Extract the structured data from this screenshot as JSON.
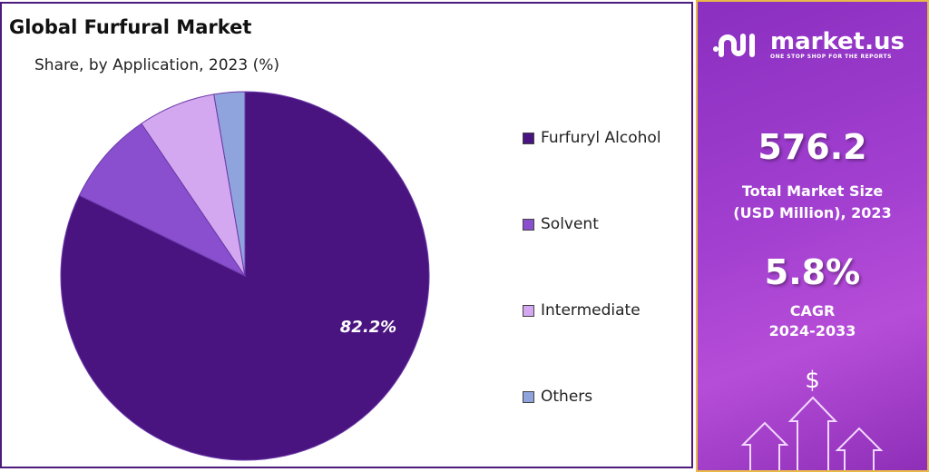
{
  "chart_data": {
    "type": "pie",
    "title": "Global Furfural Market",
    "subtitle": "Share, by Application, 2023 (%)",
    "categories": [
      "Furfuryl Alcohol",
      "Solvent",
      "Intermediate",
      "Others"
    ],
    "values": [
      82.2,
      8.3,
      6.8,
      2.7
    ],
    "colors": [
      "#4a1480",
      "#8a4fcf",
      "#d4a8f0",
      "#8fa3dc"
    ],
    "data_labels": [
      "82.2%"
    ],
    "legend_position": "right"
  },
  "panel": {
    "brand": "market.us",
    "tagline": "ONE STOP SHOP FOR THE REPORTS",
    "market_size": "576.2",
    "market_size_label_1": "Total Market Size",
    "market_size_label_2": "(USD Million), 2023",
    "cagr": "5.8%",
    "cagr_label_1": "CAGR",
    "cagr_label_2": "2024-2033",
    "dollar_symbol": "$"
  }
}
